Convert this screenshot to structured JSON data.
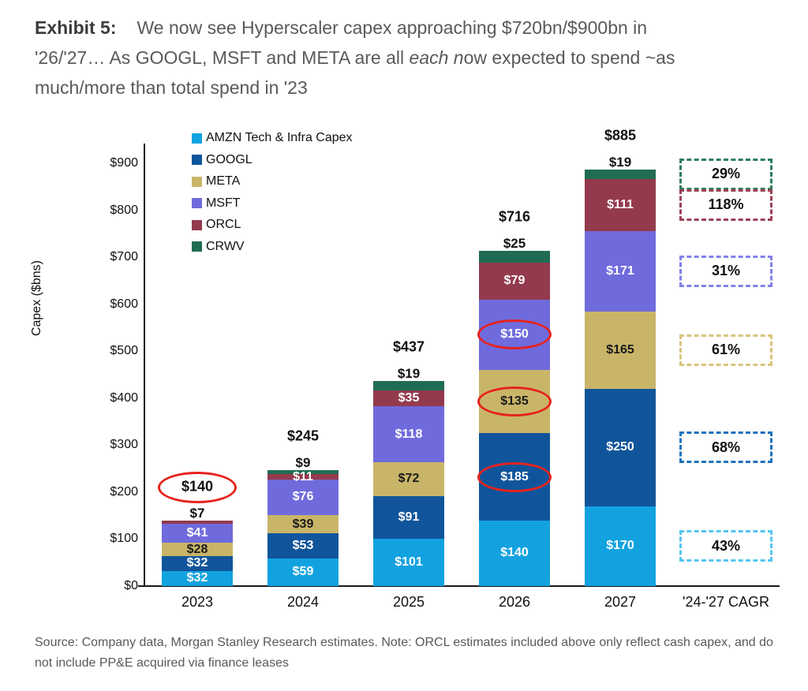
{
  "header": {
    "exhibit_label": "Exhibit 5:",
    "title_line1": "We now see Hyperscaler capex approaching $720bn/$900bn in",
    "title_line2_pre": "'26/'27… As GOOGL, MSFT and META are all ",
    "title_line2_italic": "each n",
    "title_line2_post": "ow expected to spend ~as",
    "title_line3": "much/more than total spend in '23"
  },
  "footer": {
    "source_note": "Source: Company data, Morgan Stanley Research estimates. Note: ORCL estimates included above only reflect cash capex, and do not include PP&E acquired via finance leases"
  },
  "chart_data": {
    "type": "bar",
    "stacked": true,
    "ylabel": "Capex ($bns)",
    "ylim": [
      0,
      950
    ],
    "ytick_step": 100,
    "ytick_max": 900,
    "ytick_prefix": "$",
    "grid": false,
    "legend_position": "top-left-inside",
    "categories": [
      "2023",
      "2024",
      "2025",
      "2026",
      "2027"
    ],
    "cagr_column_label": "'24-'27 CAGR",
    "series": [
      {
        "name": "AMZN Tech & Infra Capex",
        "color": "#12a2e0",
        "label_color": "#ffffff",
        "values": [
          32,
          59,
          101,
          140,
          170
        ],
        "label_positions": [
          "inside",
          "inside",
          "inside",
          "inside",
          "inside"
        ]
      },
      {
        "name": "GOOGL",
        "color": "#10559b",
        "label_color": "#ffffff",
        "values": [
          32,
          53,
          91,
          185,
          250
        ],
        "label_positions": [
          "inside",
          "inside",
          "inside",
          "inside",
          "inside"
        ]
      },
      {
        "name": "META",
        "color": "#c9b568",
        "label_color": "#1a1a1a",
        "values": [
          28,
          39,
          72,
          135,
          165
        ],
        "label_positions": [
          "inside",
          "inside",
          "inside",
          "inside",
          "inside"
        ]
      },
      {
        "name": "MSFT",
        "color": "#6f6bdc",
        "label_color": "#ffffff",
        "values": [
          41,
          76,
          118,
          150,
          171
        ],
        "label_positions": [
          "inside",
          "inside",
          "inside",
          "inside",
          "inside"
        ]
      },
      {
        "name": "ORCL",
        "color": "#943a4d",
        "label_color": "#ffffff",
        "values": [
          7,
          11,
          35,
          79,
          111
        ],
        "label_positions": [
          "above",
          "inside",
          "inside",
          "inside",
          "inside"
        ]
      },
      {
        "name": "CRWV",
        "color": "#206c53",
        "label_color": "#1a1a1a",
        "values": [
          null,
          9,
          19,
          25,
          19
        ],
        "label_positions": [
          null,
          "above",
          "above",
          "above",
          "above"
        ]
      }
    ],
    "totals": [
      140,
      245,
      437,
      716,
      885
    ],
    "circled_totals": [
      true,
      false,
      false,
      false,
      false
    ],
    "circled_segments": [
      {
        "year_index": 3,
        "series_index": 1
      },
      {
        "year_index": 3,
        "series_index": 2
      },
      {
        "year_index": 3,
        "series_index": 3
      }
    ],
    "value_prefix": "$",
    "highlight_color": "#e6231d",
    "cagr_boxes": [
      {
        "label": "29%",
        "series_index": 5,
        "color": "#2f7d5b"
      },
      {
        "label": "118%",
        "series_index": 4,
        "color": "#9b4156"
      },
      {
        "label": "31%",
        "series_index": 3,
        "color": "#8481ea"
      },
      {
        "label": "61%",
        "series_index": 2,
        "color": "#d8c47d"
      },
      {
        "label": "68%",
        "series_index": 1,
        "color": "#1d72be"
      },
      {
        "label": "43%",
        "series_index": 0,
        "color": "#55c6f2"
      }
    ]
  }
}
